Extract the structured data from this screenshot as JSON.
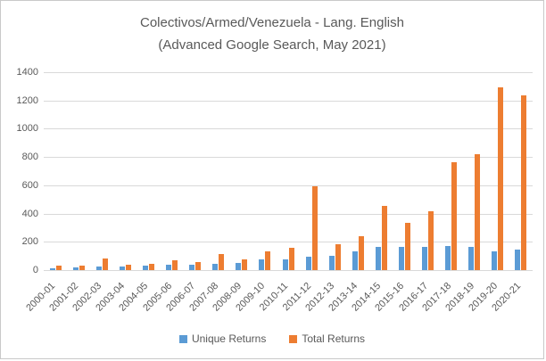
{
  "window": {
    "background": "#FFFFFF",
    "border_color": "#C9C9C9",
    "text_color": "#595959",
    "gridline_color": "#D9D9D9"
  },
  "chart_data": {
    "type": "bar",
    "title_line1": "Colectivos/Armed/Venezuela - Lang. English",
    "title_line2": "(Advanced Google Search, May 2021)",
    "categories": [
      "2000-01",
      "2001-02",
      "2002-03",
      "2003-04",
      "2004-05",
      "2005-06",
      "2006-07",
      "2007-08",
      "2008-09",
      "2009-10",
      "2010-11",
      "2011-12",
      "2012-13",
      "2013-14",
      "2014-15",
      "2015-16",
      "2016-17",
      "2017-18",
      "2018-19",
      "2019-20",
      "2020-21"
    ],
    "series": [
      {
        "name": "Unique Returns",
        "color": "#5B9BD5",
        "values": [
          12,
          20,
          27,
          28,
          30,
          40,
          40,
          44,
          53,
          76,
          78,
          95,
          103,
          130,
          162,
          162,
          163,
          168,
          163,
          130,
          145
        ]
      },
      {
        "name": "Total Returns",
        "color": "#ED7D31",
        "values": [
          30,
          33,
          85,
          38,
          47,
          72,
          58,
          115,
          75,
          135,
          155,
          592,
          180,
          240,
          455,
          335,
          415,
          765,
          820,
          1295,
          1235
        ]
      }
    ],
    "xlabel": "",
    "ylabel": "",
    "ylim": [
      0,
      1400
    ],
    "yticks": [
      0,
      200,
      400,
      600,
      800,
      1000,
      1200,
      1400
    ],
    "grid": true,
    "legend_position": "bottom"
  }
}
